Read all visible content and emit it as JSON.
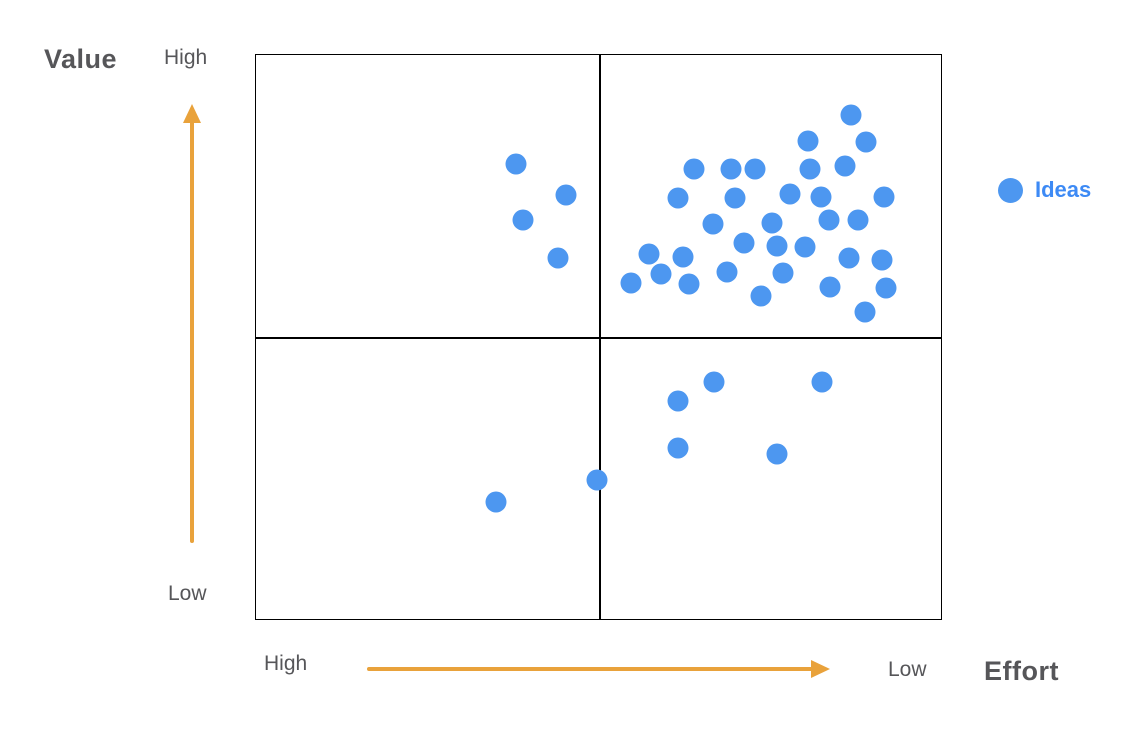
{
  "page": {
    "background": "#ffffff"
  },
  "labels": {
    "y_axis_title": "Value",
    "y_top": "High",
    "y_bottom": "Low",
    "x_left": "High",
    "x_right": "Low",
    "x_axis_title": "Effort"
  },
  "legend": {
    "label": "Ideas",
    "dot_color": "#4D97F0"
  },
  "colors": {
    "dot": "#4D97F0",
    "legend_text": "#3D8AF5",
    "arrow": "#E9A23B",
    "axis_text": "#565659",
    "grid_line": "#000000"
  },
  "chart_data": {
    "type": "scatter",
    "title": "",
    "xlabel": "Effort",
    "ylabel": "Value",
    "x_axis": {
      "left_label": "High",
      "right_label": "Low",
      "note": "Effort decreases left to right"
    },
    "y_axis": {
      "top_label": "High",
      "bottom_label": "Low",
      "note": "Value increases bottom to top"
    },
    "grid": "2x2 quadrant grid, dividers at 50% of each axis",
    "legend_position": "right, outside plot",
    "point_coords_note": "x = percent from plot left edge, y = percent from plot top edge; plot box 687x566 px",
    "series": [
      {
        "name": "Ideas",
        "color": "#4D97F0",
        "marker": "circle",
        "marker_diameter_px": 21,
        "points": [
          {
            "x": 38.0,
            "y": 19.4
          },
          {
            "x": 45.3,
            "y": 24.9
          },
          {
            "x": 39.0,
            "y": 29.2
          },
          {
            "x": 44.1,
            "y": 36.0
          },
          {
            "x": 86.9,
            "y": 10.6
          },
          {
            "x": 80.6,
            "y": 15.2
          },
          {
            "x": 89.1,
            "y": 15.4
          },
          {
            "x": 64.0,
            "y": 20.3
          },
          {
            "x": 69.3,
            "y": 20.3
          },
          {
            "x": 72.8,
            "y": 20.3
          },
          {
            "x": 80.9,
            "y": 20.3
          },
          {
            "x": 86.0,
            "y": 19.6
          },
          {
            "x": 61.6,
            "y": 25.4
          },
          {
            "x": 69.9,
            "y": 25.3
          },
          {
            "x": 78.0,
            "y": 24.6
          },
          {
            "x": 82.5,
            "y": 25.1
          },
          {
            "x": 91.7,
            "y": 25.1
          },
          {
            "x": 66.7,
            "y": 29.9
          },
          {
            "x": 75.3,
            "y": 29.7
          },
          {
            "x": 83.6,
            "y": 29.3
          },
          {
            "x": 87.9,
            "y": 29.2
          },
          {
            "x": 71.2,
            "y": 33.4
          },
          {
            "x": 76.0,
            "y": 33.9
          },
          {
            "x": 80.1,
            "y": 34.1
          },
          {
            "x": 57.4,
            "y": 35.2
          },
          {
            "x": 62.4,
            "y": 35.9
          },
          {
            "x": 86.6,
            "y": 36.0
          },
          {
            "x": 91.4,
            "y": 36.4
          },
          {
            "x": 54.7,
            "y": 40.5
          },
          {
            "x": 59.1,
            "y": 38.9
          },
          {
            "x": 63.2,
            "y": 40.6
          },
          {
            "x": 68.7,
            "y": 38.5
          },
          {
            "x": 77.0,
            "y": 38.7
          },
          {
            "x": 73.7,
            "y": 42.8
          },
          {
            "x": 83.8,
            "y": 41.2
          },
          {
            "x": 92.0,
            "y": 41.3
          },
          {
            "x": 88.9,
            "y": 45.6
          },
          {
            "x": 35.1,
            "y": 79.2
          },
          {
            "x": 49.8,
            "y": 75.4
          },
          {
            "x": 61.6,
            "y": 61.3
          },
          {
            "x": 66.8,
            "y": 58.0
          },
          {
            "x": 82.7,
            "y": 58.0
          },
          {
            "x": 61.6,
            "y": 69.6
          },
          {
            "x": 76.0,
            "y": 70.7
          }
        ]
      }
    ]
  }
}
